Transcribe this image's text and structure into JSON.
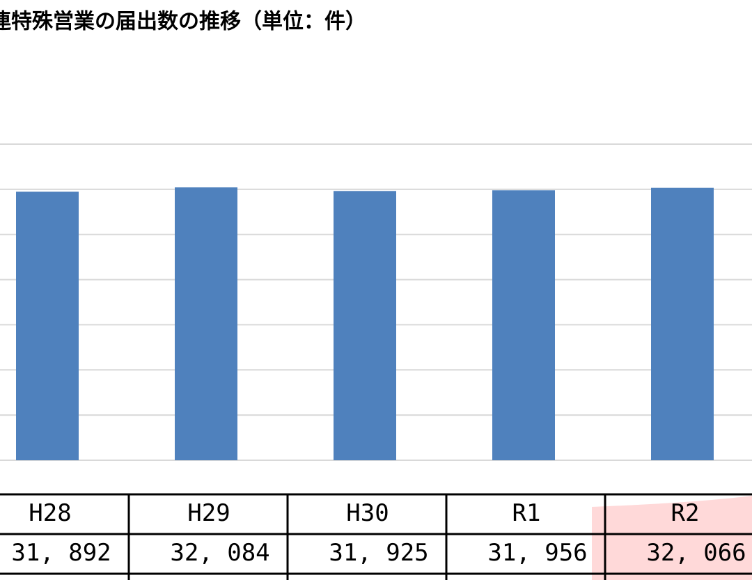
{
  "chart_data": {
    "type": "bar",
    "title": "連特殊営業の届出数の推移（単位：件）",
    "categories": [
      "H28",
      "H29",
      "H30",
      "R1",
      "R2"
    ],
    "values": [
      31892,
      32084,
      31925,
      31956,
      32066
    ],
    "value_labels": [
      "31, 892",
      "32, 084",
      "31, 925",
      "31, 956",
      "32, 066"
    ],
    "color": "#4f81bd",
    "ylim": [
      20000,
      34000
    ],
    "yticks": [
      20000,
      22000,
      24000,
      26000,
      28000,
      30000,
      32000,
      34000
    ],
    "grid": true
  }
}
